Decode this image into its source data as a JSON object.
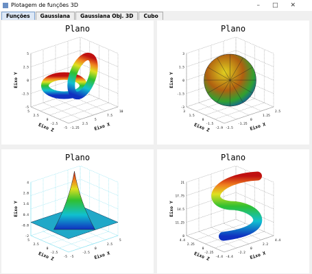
{
  "window": {
    "title": "Plotagem de funções 3D"
  },
  "tabs": [
    "Funções",
    "Gaussiana",
    "Gaussiana Obj. 3D",
    "Cubo"
  ],
  "plots": [
    {
      "title": "Plano",
      "x_label": "Eixo X",
      "y_label": "Eixo Y",
      "z_label": "Eixo Z",
      "x_ticks": [
        "-1.25",
        "2.5",
        "5",
        "7.5",
        "10"
      ],
      "y_ticks": [
        "5",
        "2.5",
        "0",
        "-2.5",
        "-5"
      ],
      "z_ticks": [
        "5",
        "2.5",
        "0",
        "-2.5",
        "-5"
      ]
    },
    {
      "title": "Plano",
      "x_label": "Eixo X",
      "y_label": "Eixo Y",
      "z_label": "Eixo Z",
      "x_ticks": [
        "-2.5",
        "-1.25",
        "0",
        "1.25",
        "2.5"
      ],
      "y_ticks": [
        "3",
        "1.5",
        "0",
        "-1.5",
        "-3"
      ],
      "z_ticks": [
        "3",
        "1.5",
        "0",
        "-1.5",
        "-2.9"
      ]
    },
    {
      "title": "Plano",
      "x_label": "Eixo X",
      "y_label": "Eixo Y",
      "z_label": "Eixo Z",
      "x_ticks": [
        "-5",
        "-2.5",
        "0",
        "2.5",
        "5"
      ],
      "y_ticks": [
        "4",
        "2.8",
        "1.6",
        "0.4",
        "-0.8",
        "-2"
      ],
      "z_ticks": [
        "5",
        "2.5",
        "0",
        "-2.5",
        "-5"
      ]
    },
    {
      "title": "Plano",
      "x_label": "Eixo X",
      "y_label": "Eixo Y",
      "z_label": "Eixo Z",
      "x_ticks": [
        "-4.4",
        "-2.2",
        "0",
        "2.2",
        "4.4"
      ],
      "y_ticks": [
        "21",
        "17.75",
        "14.5",
        "11.25",
        "8"
      ],
      "z_ticks": [
        "4.4",
        "2.25",
        "0",
        "-2.25",
        "-4.4"
      ]
    }
  ]
}
